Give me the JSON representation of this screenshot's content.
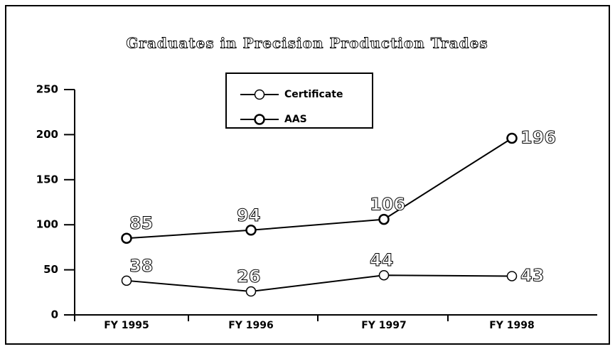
{
  "chart_data": {
    "type": "line",
    "title": "Graduates in Precision Production Trades",
    "categories": [
      "FY 1995",
      "FY 1996",
      "FY 1997",
      "FY 1998"
    ],
    "series": [
      {
        "name": "Certificate",
        "color": "#000000",
        "values": [
          38,
          26,
          44,
          43
        ]
      },
      {
        "name": "AAS",
        "color": "#000000",
        "values": [
          85,
          94,
          106,
          196
        ]
      }
    ],
    "ylim": [
      0,
      250
    ],
    "yticks": [
      0,
      50,
      100,
      150,
      200,
      250
    ]
  }
}
